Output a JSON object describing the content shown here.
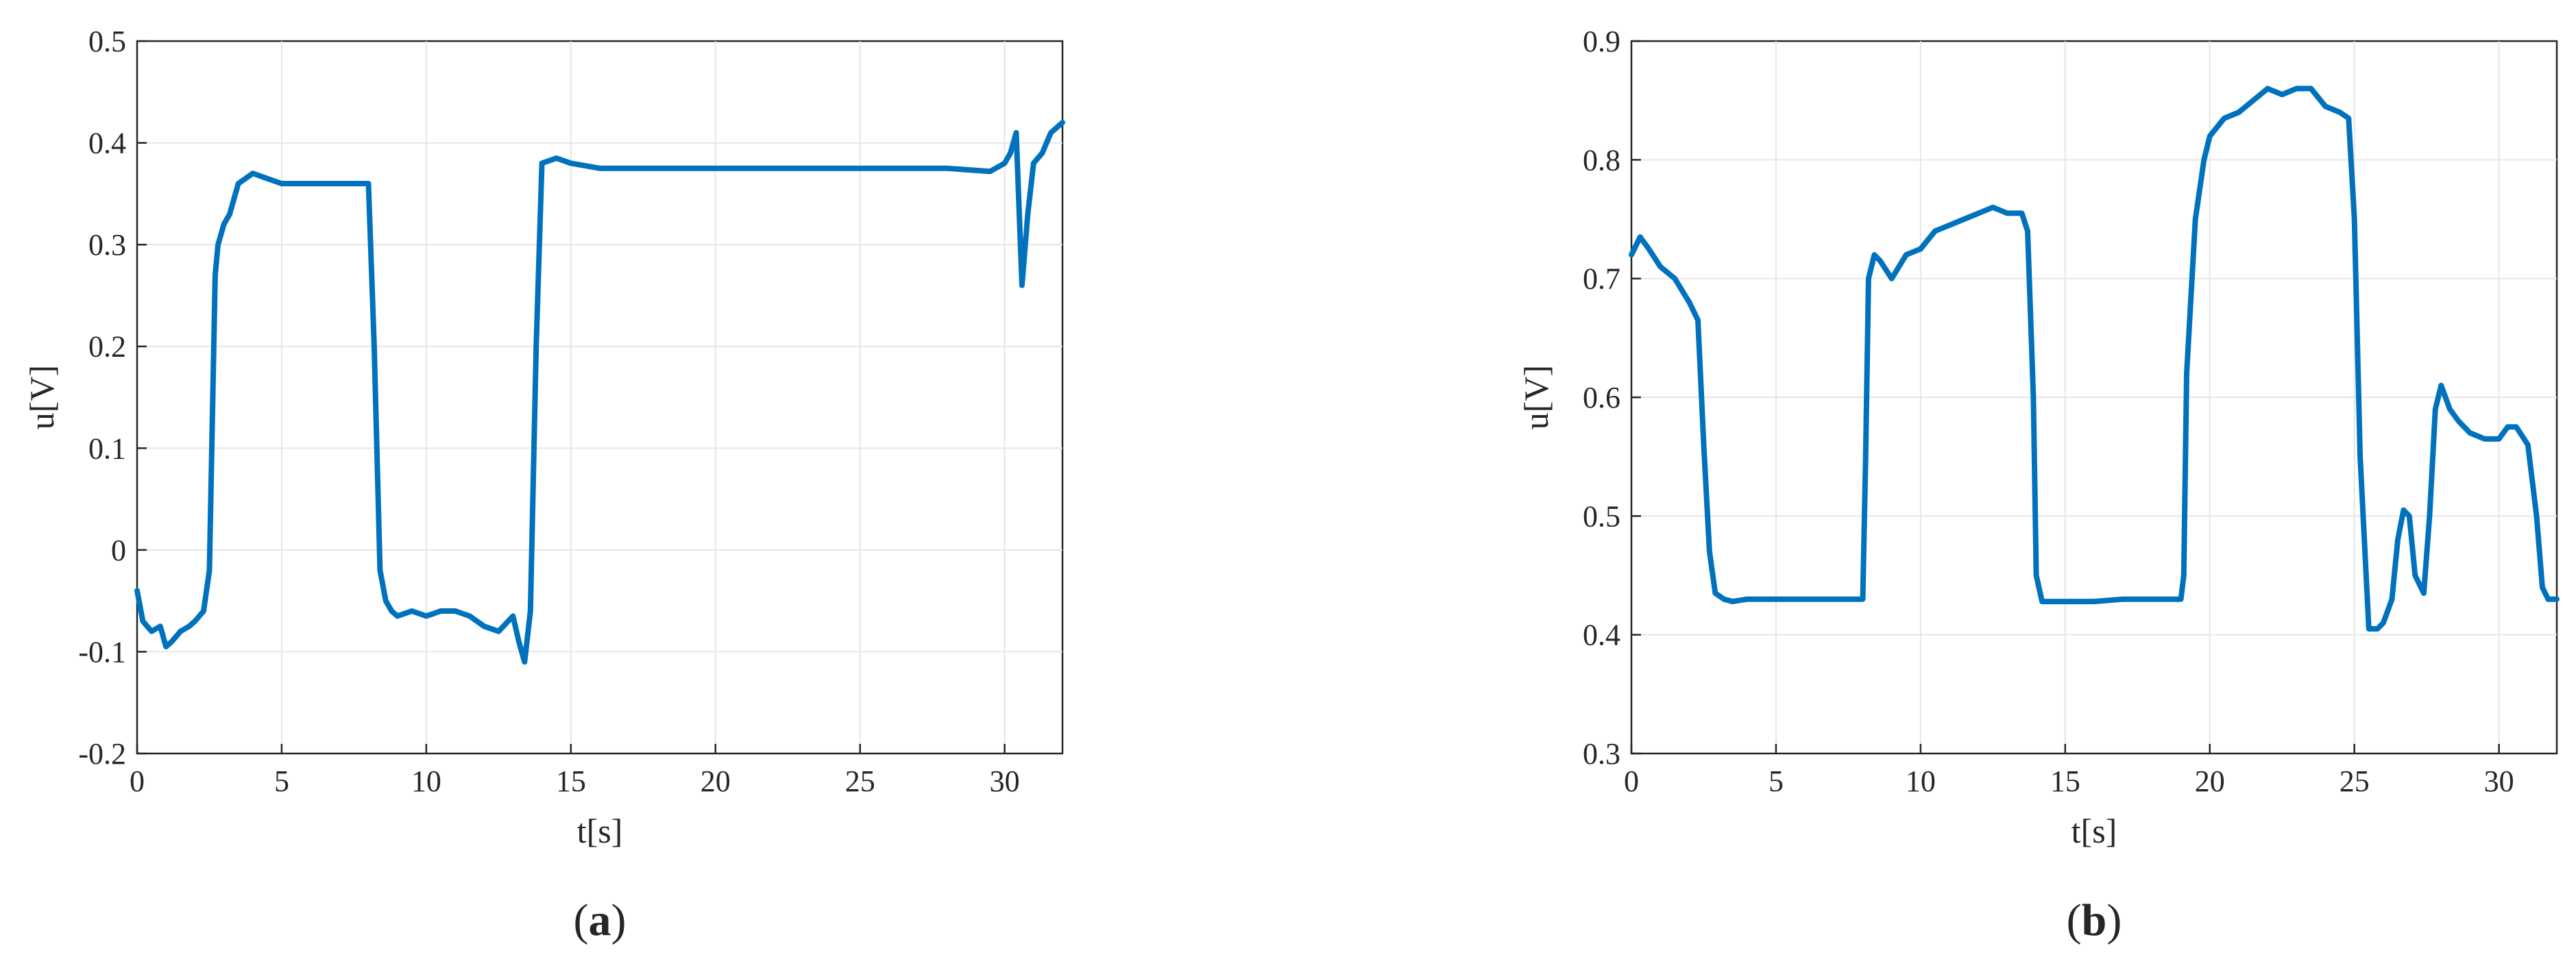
{
  "chart_data": [
    {
      "type": "line",
      "caption": {
        "open": "(",
        "letter": "a",
        "close": ")"
      },
      "xlabel": "t[s]",
      "ylabel": "u[V]",
      "xlim": [
        0,
        32
      ],
      "ylim": [
        -0.2,
        0.5
      ],
      "xticks": [
        0,
        5,
        10,
        15,
        20,
        25,
        30
      ],
      "yticks": [
        -0.2,
        -0.1,
        0,
        0.1,
        0.2,
        0.3,
        0.4,
        0.5
      ],
      "xtick_labels": [
        "0",
        "5",
        "10",
        "15",
        "20",
        "25",
        "30"
      ],
      "ytick_labels": [
        "-0.2",
        "-0.1",
        "0",
        "0.1",
        "0.2",
        "0.3",
        "0.4",
        "0.5"
      ],
      "grid": true,
      "line_color": "#0072BD",
      "series": [
        {
          "x": [
            0,
            0.2,
            0.5,
            0.8,
            1.0,
            1.2,
            1.5,
            1.8,
            2.0,
            2.3,
            2.5,
            2.7,
            2.8,
            3.0,
            3.2,
            3.5,
            4.0,
            4.5,
            5.0,
            5.5,
            6.0,
            6.5,
            7.0,
            7.5,
            8.0,
            8.2,
            8.4,
            8.6,
            8.8,
            9.0,
            9.5,
            10.0,
            10.5,
            11.0,
            11.5,
            12.0,
            12.5,
            13.0,
            13.2,
            13.4,
            13.6,
            13.8,
            14.0,
            14.5,
            15.0,
            16,
            18,
            20,
            22,
            24,
            26,
            28,
            29.5,
            30.0,
            30.2,
            30.4,
            30.6,
            30.8,
            31.0,
            31.3,
            31.6,
            32.0
          ],
          "y": [
            -0.04,
            -0.07,
            -0.08,
            -0.075,
            -0.095,
            -0.09,
            -0.08,
            -0.075,
            -0.07,
            -0.06,
            -0.02,
            0.27,
            0.3,
            0.32,
            0.33,
            0.36,
            0.37,
            0.365,
            0.36,
            0.36,
            0.36,
            0.36,
            0.36,
            0.36,
            0.36,
            0.2,
            -0.02,
            -0.05,
            -0.06,
            -0.065,
            -0.06,
            -0.065,
            -0.06,
            -0.06,
            -0.065,
            -0.075,
            -0.08,
            -0.065,
            -0.09,
            -0.11,
            -0.06,
            0.2,
            0.38,
            0.385,
            0.38,
            0.375,
            0.375,
            0.375,
            0.375,
            0.375,
            0.375,
            0.375,
            0.372,
            0.38,
            0.39,
            0.41,
            0.26,
            0.33,
            0.38,
            0.39,
            0.41,
            0.42
          ]
        }
      ]
    },
    {
      "type": "line",
      "caption": {
        "open": "(",
        "letter": "b",
        "close": ")"
      },
      "xlabel": "t[s]",
      "ylabel": "u[V]",
      "xlim": [
        0,
        32
      ],
      "ylim": [
        0.3,
        0.9
      ],
      "xticks": [
        0,
        5,
        10,
        15,
        20,
        25,
        30
      ],
      "yticks": [
        0.3,
        0.4,
        0.5,
        0.6,
        0.7,
        0.8,
        0.9
      ],
      "xtick_labels": [
        "0",
        "5",
        "10",
        "15",
        "20",
        "25",
        "30"
      ],
      "ytick_labels": [
        "0.3",
        "0.4",
        "0.5",
        "0.6",
        "0.7",
        "0.8",
        "0.9"
      ],
      "grid": true,
      "line_color": "#0072BD",
      "series": [
        {
          "x": [
            0,
            0.3,
            0.6,
            1.0,
            1.5,
            2.0,
            2.3,
            2.5,
            2.7,
            2.9,
            3.2,
            3.5,
            4,
            5,
            6,
            7,
            8.0,
            8.1,
            8.2,
            8.4,
            8.6,
            9.0,
            9.5,
            10.0,
            10.5,
            11.0,
            11.5,
            12.0,
            12.5,
            13.0,
            13.5,
            13.7,
            13.9,
            14.0,
            14.2,
            14.5,
            15,
            16,
            17,
            18,
            19.0,
            19.1,
            19.2,
            19.5,
            19.8,
            20.0,
            20.5,
            21.0,
            21.5,
            22.0,
            22.5,
            23.0,
            23.5,
            24.0,
            24.5,
            24.8,
            25.0,
            25.2,
            25.5,
            25.8,
            26.0,
            26.3,
            26.5,
            26.7,
            26.9,
            27.1,
            27.4,
            27.6,
            27.8,
            28.0,
            28.3,
            28.6,
            29.0,
            29.5,
            30.0,
            30.3,
            30.6,
            31.0,
            31.3,
            31.5,
            31.7,
            32.0
          ],
          "y": [
            0.72,
            0.735,
            0.725,
            0.71,
            0.7,
            0.68,
            0.665,
            0.56,
            0.47,
            0.435,
            0.43,
            0.428,
            0.43,
            0.43,
            0.43,
            0.43,
            0.43,
            0.55,
            0.7,
            0.72,
            0.715,
            0.7,
            0.72,
            0.725,
            0.74,
            0.745,
            0.75,
            0.755,
            0.76,
            0.755,
            0.755,
            0.74,
            0.6,
            0.45,
            0.428,
            0.428,
            0.428,
            0.428,
            0.43,
            0.43,
            0.43,
            0.45,
            0.62,
            0.75,
            0.8,
            0.82,
            0.835,
            0.84,
            0.85,
            0.86,
            0.855,
            0.86,
            0.86,
            0.845,
            0.84,
            0.835,
            0.75,
            0.55,
            0.405,
            0.405,
            0.41,
            0.43,
            0.48,
            0.505,
            0.5,
            0.45,
            0.435,
            0.5,
            0.59,
            0.61,
            0.59,
            0.58,
            0.57,
            0.565,
            0.565,
            0.575,
            0.575,
            0.56,
            0.5,
            0.44,
            0.43,
            0.43
          ]
        }
      ]
    }
  ]
}
